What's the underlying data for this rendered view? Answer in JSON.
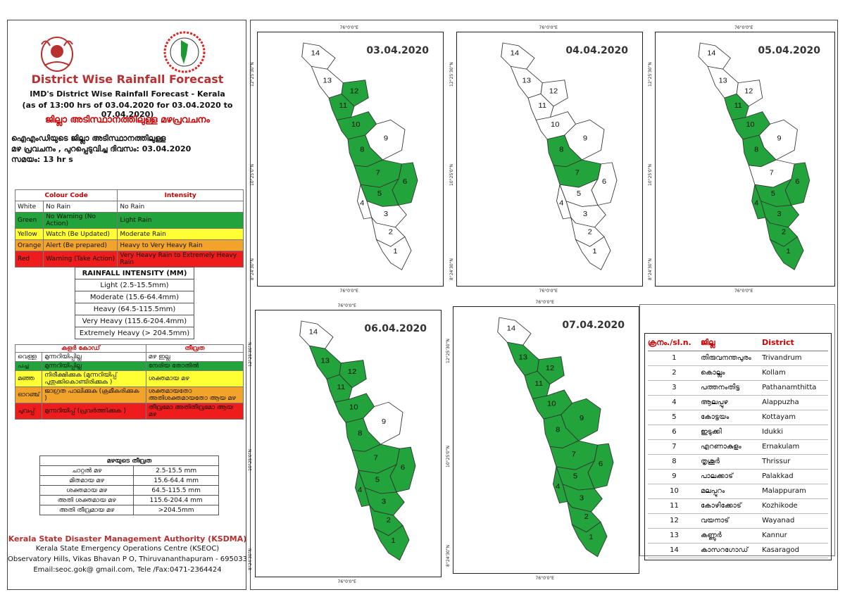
{
  "header": {
    "title": "District Wise Rainfall Forecast",
    "sub1": "IMD's District Wise Rainfall Forecast - Kerala",
    "sub2": "(as of 13:00 hrs of 03.04.2020  for 03.04.2020  to 07.04.2020)",
    "mal_title": "ജില്ലാ അടിസ്ഥാനത്തിലുള്ള മഴപ്രവചനം",
    "mal_line1": "ഐഎംഡിയുടെ ജില്ലാ      അടിസ്ഥാനത്തിലുള്ള",
    "mal_line2": "മഴ പ്രവചനം , പുറപ്പെടുവിച്ച      ദിവസം: 03.04.2020",
    "mal_line3": "സമയം: 13  hr s"
  },
  "colour_code": {
    "head1": "Colour Code",
    "head2": "Intensity",
    "rows": [
      {
        "c": "White",
        "code": "No Rain",
        "int": "No Rain",
        "cls": ""
      },
      {
        "c": "Green",
        "code": "No Warning (No Action)",
        "int": "Light Rain",
        "cls": "green"
      },
      {
        "c": "Yellow",
        "code": "Watch (Be Updated)",
        "int": "Moderate Rain",
        "cls": "yellow"
      },
      {
        "c": "Orange",
        "code": "Alert (Be prepared)",
        "int": "Heavy to Very Heavy Rain",
        "cls": "orange"
      },
      {
        "c": "Red",
        "code": "Warning (Take Action)",
        "int": "Very Heavy Rain to Extremely Heavy Rain",
        "cls": "red"
      }
    ]
  },
  "rainfall_intensity": {
    "title": "RAINFALL INTENSITY (MM)",
    "rows": [
      "Light (2.5-15.5mm)",
      "Moderate (15.6-64.4mm)",
      "Heavy (64.5-115.5mm)",
      "Very Heavy (115.6-204.4mm)",
      "Extremely Heavy (> 204.5mm)"
    ]
  },
  "mal_colour_code": {
    "head1": "കളർ കോഡ്",
    "head2": "തീവ്രത",
    "rows": [
      {
        "c": "വെള്ള",
        "code": "മുന്നറിയിപ്പില്ല",
        "int": "മഴ ഇല്ല",
        "cls": ""
      },
      {
        "c": "പച്ച",
        "code": "മുന്നറിയിപ്പില്ല",
        "int": "നേരിയ തോതിൽ",
        "cls": "green"
      },
      {
        "c": "മഞ്ഞ",
        "code": "നിരീക്ഷിക്കുക (മുന്നറിയിപ്പ് പുതുക്കികൊണ്ടിരിക്കുക )",
        "int": "ശക്തമായ മഴ",
        "cls": "yellow"
      },
      {
        "c": "ഓറഞ്ച്",
        "code": "ജാഗ്രത പാലിക്കുക (ക്രമീകരിക്കുക )",
        "int": "ശക്തമായതോ അതിശക്തമായതോ ആയ മഴ",
        "cls": "orange"
      },
      {
        "c": "ചുവപ്പ്",
        "code": "മുന്നറിയിപ്പ് (പ്രവർത്തിക്കുക )",
        "int": "തീവ്രമോ അതിതീവ്രമോ ആയ മഴ",
        "cls": "red"
      }
    ]
  },
  "mal_intensity": {
    "title": "മഴയുടെ തീവ്രത",
    "rows": [
      [
        "ചാറ്റൽ മഴ",
        "2.5-15.5 mm"
      ],
      [
        "മിതമായ മഴ",
        "15.6-64.4 mm"
      ],
      [
        "ശക്തമായ മഴ",
        "64.5-115.5 mm"
      ],
      [
        "അതി ശക്തമായ മഴ",
        "115.6-204.4 mm"
      ],
      [
        "അതി തീവ്രമായ മഴ",
        ">204.5mm"
      ]
    ]
  },
  "footer": {
    "org": "Kerala State Disaster Management Authority (KSDMA)",
    "line1": "Kerala State Emergency Operations Centre (KSEOC)",
    "line2": "Observatory Hills, Vikas Bhavan P O, Thiruvananthapuram - 695033",
    "line3": "Email:seoc.gok@ gmail.com, Tele /Fax:0471-2364424"
  },
  "map_labels": {
    "lon": "76°0'0\"E",
    "lat_top": "12°25'30\"N",
    "lat_mid": "10°25'0\"N",
    "lat_bot": "8°24'30\"N"
  },
  "maps": [
    {
      "date": "03.04.2020",
      "green": [
        5,
        6,
        7,
        8,
        10,
        11,
        12
      ]
    },
    {
      "date": "04.04.2020",
      "green": [
        7,
        8
      ]
    },
    {
      "date": "05.04.2020",
      "green": [
        1,
        2,
        3,
        4,
        5,
        6,
        8,
        10,
        11
      ]
    },
    {
      "date": "06.04.2020",
      "green": [
        1,
        2,
        3,
        4,
        5,
        6,
        7,
        8,
        10,
        11,
        12,
        13
      ]
    },
    {
      "date": "07.04.2020",
      "green": [
        1,
        2,
        3,
        4,
        5,
        6,
        7,
        8,
        9,
        10,
        11,
        12,
        13
      ]
    }
  ],
  "district_table": {
    "head": [
      "ക്രനം./sl.n.",
      "ജില്ല",
      "District"
    ],
    "rows": [
      [
        "1",
        "തിരുവനന്തപുരം",
        "Trivandrum"
      ],
      [
        "2",
        "കൊല്ലം",
        "Kollam"
      ],
      [
        "3",
        "പത്തനംതിട്ട",
        "Pathanamthitta"
      ],
      [
        "4",
        "ആലപ്പുഴ",
        "Alappuzha"
      ],
      [
        "5",
        "കോട്ടയം",
        "Kottayam"
      ],
      [
        "6",
        "ഇടുക്കി",
        "Idukki"
      ],
      [
        "7",
        "എറണാകുളം",
        "Ernakulam"
      ],
      [
        "8",
        "തൃശൂർ",
        "Thrissur"
      ],
      [
        "9",
        "പാലക്കാട്",
        "Palakkad"
      ],
      [
        "10",
        "മലപ്പുറം",
        "Malappuram"
      ],
      [
        "11",
        "കോഴിക്കോട്",
        "Kozhikode"
      ],
      [
        "12",
        "വയനാട്",
        "Wayanad"
      ],
      [
        "13",
        "കണ്ണൂർ",
        "Kannur"
      ],
      [
        "14",
        "കാസറഗോഡ്",
        "Kasaragod"
      ]
    ]
  },
  "colors": {
    "green": "#22a33b",
    "white": "#ffffff",
    "title_red": "#b83030"
  }
}
